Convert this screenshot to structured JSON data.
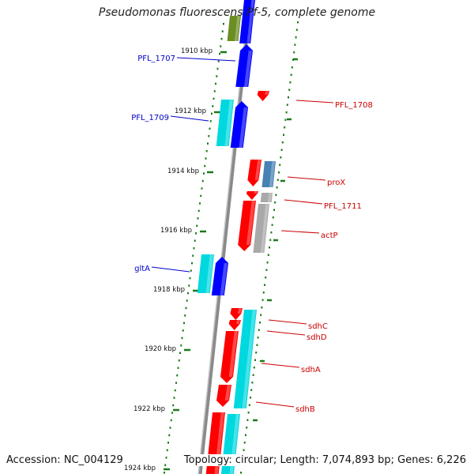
{
  "title": "Pseudomonas fluorescens Pf-5, complete genome",
  "footer": {
    "accession": "Accession: NC_004129",
    "topology": "Topology: circular; Length: 7,074,893 bp; Genes: 6,226"
  },
  "colors": {
    "backbone": "#8a8a8a",
    "ruler_ticks": "#1a7a1a",
    "forward_label": "#0000cc",
    "reverse_label": "#cc0000",
    "red": "#ff0000",
    "blue": "#0000ff",
    "cyan": "#00d8e0",
    "olive": "#6b8e23",
    "steel": "#4682b4",
    "gray": "#a9a9a9"
  },
  "ruler": {
    "ticks": [
      {
        "label": "1910 kbp"
      },
      {
        "label": "1912 kbp"
      },
      {
        "label": "1914 kbp"
      },
      {
        "label": "1916 kbp"
      },
      {
        "label": "1918 kbp"
      },
      {
        "label": "1920 kbp"
      },
      {
        "label": "1922 kbp"
      },
      {
        "label": "1924 kbp"
      }
    ]
  },
  "genes": [
    {
      "name": "PFL_1707",
      "color": "blue",
      "strand": "forward"
    },
    {
      "name": "PFL_1708",
      "color": "red",
      "strand": "reverse"
    },
    {
      "name": "PFL_1709",
      "color": "blue",
      "strand": "forward"
    },
    {
      "name": "proX",
      "color": "red",
      "strand": "reverse"
    },
    {
      "name": "PFL_1711",
      "color": "red",
      "strand": "reverse"
    },
    {
      "name": "actP",
      "color": "red",
      "strand": "reverse"
    },
    {
      "name": "gltA",
      "color": "blue",
      "strand": "forward"
    },
    {
      "name": "sdhC",
      "color": "red",
      "strand": "reverse"
    },
    {
      "name": "sdhD",
      "color": "red",
      "strand": "reverse"
    },
    {
      "name": "sdhA",
      "color": "red",
      "strand": "reverse"
    },
    {
      "name": "sdhB",
      "color": "red",
      "strand": "reverse"
    }
  ]
}
